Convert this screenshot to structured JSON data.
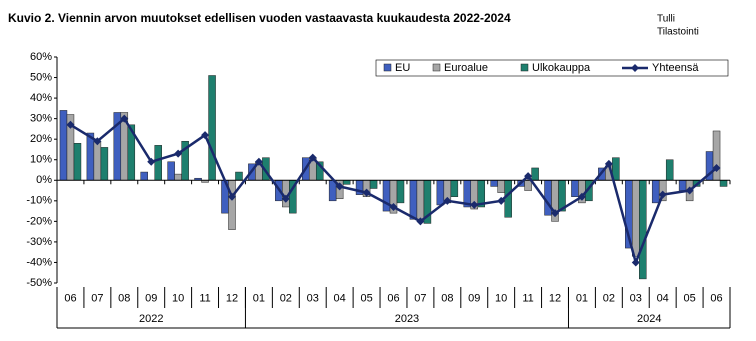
{
  "chart_data": {
    "type": "bar-line",
    "title": "Kuvio 2. Viennin arvon muutokset  edellisen vuoden vastaavasta  kuukaudesta 2022-2024",
    "source": [
      "Tulli",
      "Tilastointi"
    ],
    "groups": [
      {
        "label": "2022",
        "categories": [
          "06",
          "07",
          "08",
          "09",
          "10",
          "11",
          "12"
        ]
      },
      {
        "label": "2023",
        "categories": [
          "01",
          "02",
          "03",
          "04",
          "05",
          "06",
          "07",
          "08",
          "09",
          "10",
          "11",
          "12"
        ]
      },
      {
        "label": "2024",
        "categories": [
          "01",
          "02",
          "03",
          "04",
          "05",
          "06"
        ]
      }
    ],
    "series": [
      {
        "name": "EU",
        "color": "#3f5fbf",
        "kind": "bar",
        "values": [
          34,
          23,
          33,
          4,
          9,
          1,
          -16,
          8,
          -10,
          11,
          -10,
          -7,
          -15,
          -19,
          -12,
          -13,
          -3,
          -3,
          -17,
          -8,
          6,
          -33,
          -11,
          -5,
          14
        ]
      },
      {
        "name": "Euroalue",
        "color": "#a6a6a6",
        "kind": "bar",
        "values": [
          32,
          19,
          33,
          0,
          3,
          -1,
          -24,
          9,
          -13,
          11,
          -9,
          -8,
          -16,
          -19,
          -11,
          -14,
          -6,
          -5,
          -20,
          -11,
          7,
          -37,
          -10,
          -10,
          24
        ]
      },
      {
        "name": "Ulkokauppa",
        "color": "#1e7f6e",
        "kind": "bar",
        "values": [
          18,
          16,
          27,
          17,
          19,
          51,
          4,
          11,
          -16,
          9,
          -2,
          -4,
          -11,
          -21,
          -8,
          -13,
          -18,
          6,
          -15,
          -10,
          11,
          -48,
          10,
          -3,
          -3
        ]
      },
      {
        "name": "Yhteensä",
        "color": "#1a2a6c",
        "kind": "line",
        "values": [
          27,
          19,
          30,
          9,
          13,
          22,
          -8,
          9,
          -9,
          11,
          -3,
          -6,
          -13,
          -20,
          -10,
          -12,
          -10,
          2,
          -16,
          -8,
          8,
          -40,
          -7,
          -5,
          6
        ]
      }
    ],
    "ylim": [
      -50,
      60
    ],
    "yticks": [
      {
        "value": -50,
        "label": "-50%"
      },
      {
        "value": -40,
        "label": "-40%"
      },
      {
        "value": -30,
        "label": "-30%"
      },
      {
        "value": -20,
        "label": "-20%"
      },
      {
        "value": -10,
        "label": "-10%"
      },
      {
        "value": 0,
        "label": "0%"
      },
      {
        "value": 10,
        "label": "10%"
      },
      {
        "value": 20,
        "label": "20%"
      },
      {
        "value": 30,
        "label": "30%"
      },
      {
        "value": 40,
        "label": "40%"
      },
      {
        "value": 50,
        "label": "50%"
      },
      {
        "value": 60,
        "label": "60%"
      }
    ],
    "legend": "top-right"
  }
}
